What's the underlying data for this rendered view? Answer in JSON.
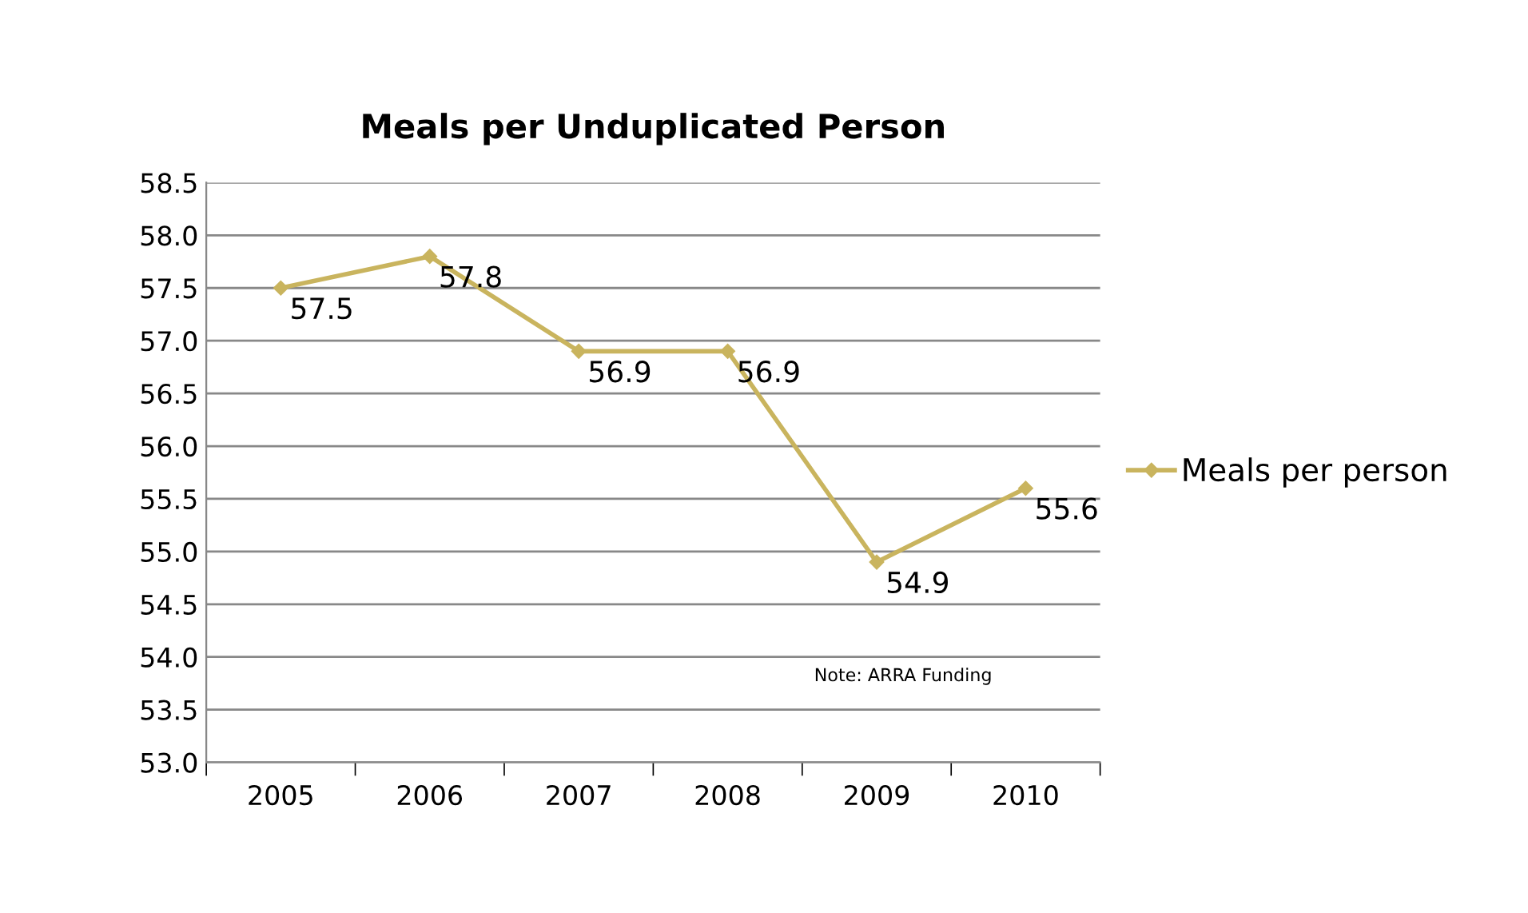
{
  "chart_data": {
    "type": "line",
    "title": "Meals per Unduplicated Person",
    "categories": [
      "2005",
      "2006",
      "2007",
      "2008",
      "2009",
      "2010"
    ],
    "series": [
      {
        "name": "Meals per person",
        "color": "#c9b45e",
        "values": [
          57.5,
          57.8,
          56.9,
          56.9,
          54.9,
          55.6
        ]
      }
    ],
    "ylim": [
      53,
      58.5
    ],
    "yticks": [
      {
        "value": 53,
        "label": "53.0"
      },
      53.5,
      {
        "value": 54,
        "label": "54.0"
      },
      54.5,
      {
        "value": 55,
        "label": "55.0"
      },
      55.5,
      {
        "value": 56,
        "label": "56.0"
      },
      56.5,
      {
        "value": 57,
        "label": "57.0"
      },
      57.5,
      {
        "value": 58,
        "label": "58.0"
      },
      58.5
    ],
    "grid": "y",
    "legend": "right",
    "marker": "diamond",
    "data_labels": true,
    "annotations": [
      "Note: ARRA Funding"
    ]
  }
}
